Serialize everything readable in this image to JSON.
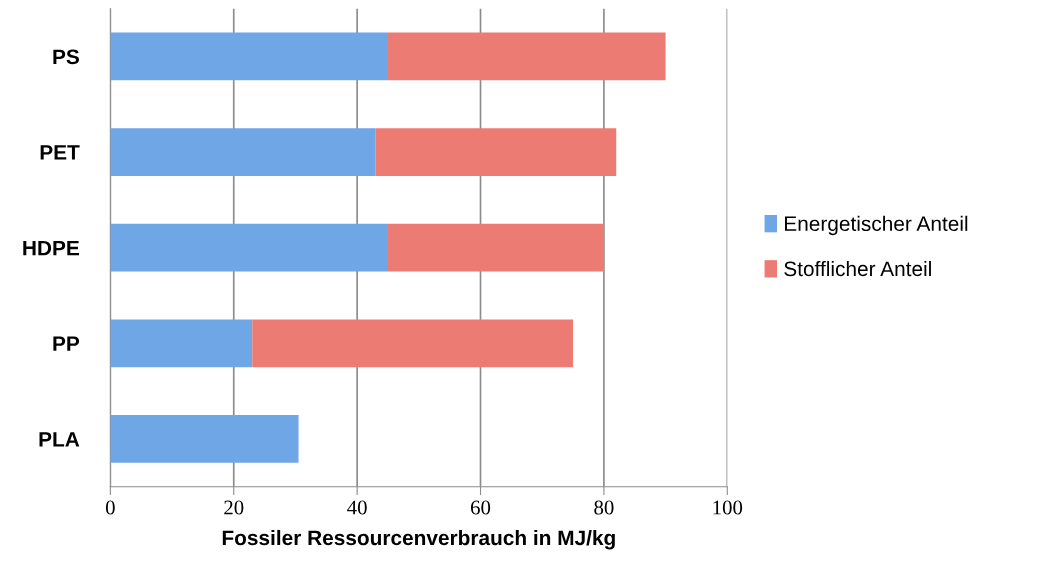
{
  "chart_data": {
    "type": "bar",
    "orientation": "horizontal",
    "stacked": true,
    "xlabel": "Fossiler Ressourcenverbrauch in MJ/kg",
    "categories": [
      "PS",
      "PET",
      "HDPE",
      "PP",
      "PLA"
    ],
    "series": [
      {
        "name": "Energetischer Anteil",
        "color": "#6fa6e6",
        "values": [
          45,
          43,
          45,
          23,
          30.5
        ]
      },
      {
        "name": "Stofflicher Anteil",
        "color": "#ec7b73",
        "values": [
          45,
          39,
          35,
          52,
          0
        ]
      }
    ],
    "xlim": [
      0,
      100
    ],
    "xticks": [
      0,
      20,
      40,
      60,
      80,
      100
    ],
    "grid": "x",
    "legend": "right"
  }
}
